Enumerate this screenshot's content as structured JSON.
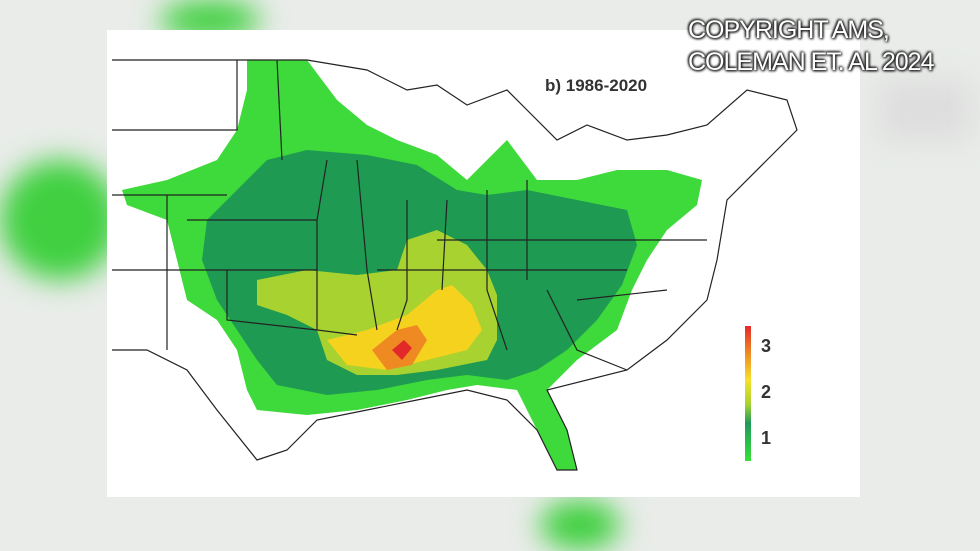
{
  "watermark": {
    "line1": "COPYRIGHT AMS,",
    "line2": "COLEMAN ET. AL 2024"
  },
  "map": {
    "title": "b) 1986-2020",
    "legend": {
      "labels": [
        "3",
        "2",
        "1"
      ],
      "range": [
        0.5,
        3.2
      ]
    },
    "colors": {
      "level_low": "#3ed93a",
      "level_1": "#1f9a52",
      "level_1_5": "#a8d230",
      "level_2": "#f5d21e",
      "level_2_5": "#ef8a23",
      "level_3": "#e3282a"
    }
  }
}
